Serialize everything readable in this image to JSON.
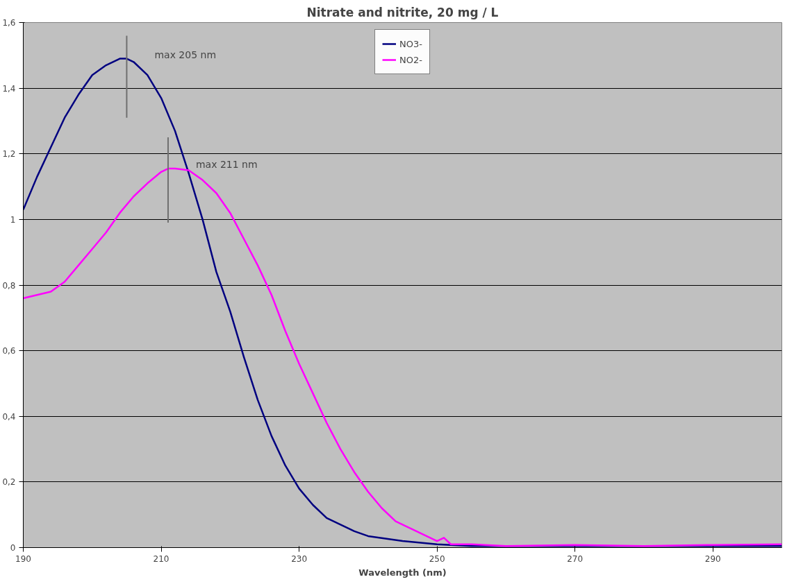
{
  "chart_data": {
    "type": "line",
    "title": "Nitrate and nitrite, 20 mg / L",
    "xlabel": "Wavelength (nm)",
    "xlim": [
      190,
      300
    ],
    "xticks": [
      190,
      210,
      230,
      250,
      270,
      290
    ],
    "ylim": [
      0,
      1.6
    ],
    "yticks": [
      0,
      {
        "value": 0.2,
        "label": "0,2"
      },
      {
        "value": 0.4,
        "label": "0,4"
      },
      {
        "value": 0.6,
        "label": "0,6"
      },
      {
        "value": 0.8,
        "label": "0,8"
      },
      1,
      {
        "value": 1.2,
        "label": "1,2"
      },
      {
        "value": 1.4,
        "label": "1,4"
      },
      {
        "value": 1.6,
        "label": "1,6"
      }
    ],
    "grid": "y",
    "legend": "top",
    "series": [
      {
        "name": "NO3-",
        "color": "#000080",
        "x": [
          190,
          192,
          194,
          196,
          198,
          200,
          202,
          204,
          205,
          206,
          208,
          210,
          212,
          214,
          216,
          218,
          220,
          222,
          224,
          226,
          228,
          230,
          232,
          234,
          236,
          238,
          240,
          245,
          250,
          255,
          260,
          270,
          280,
          290,
          300
        ],
        "values": [
          1.03,
          1.13,
          1.22,
          1.31,
          1.38,
          1.44,
          1.47,
          1.49,
          1.49,
          1.48,
          1.44,
          1.37,
          1.27,
          1.14,
          1.0,
          0.84,
          0.72,
          0.58,
          0.45,
          0.34,
          0.25,
          0.18,
          0.13,
          0.09,
          0.07,
          0.05,
          0.035,
          0.02,
          0.01,
          0.005,
          0.005,
          0.005,
          0.005,
          0.005,
          0.005
        ]
      },
      {
        "name": "NO2-",
        "color": "#ff00ff",
        "x": [
          190,
          192,
          194,
          196,
          198,
          200,
          202,
          204,
          206,
          208,
          210,
          211,
          212,
          214,
          216,
          218,
          220,
          222,
          224,
          226,
          228,
          230,
          232,
          234,
          236,
          238,
          240,
          242,
          244,
          246,
          248,
          250,
          251,
          252,
          255,
          260,
          270,
          280,
          290,
          300
        ],
        "values": [
          0.76,
          0.77,
          0.78,
          0.81,
          0.86,
          0.91,
          0.96,
          1.02,
          1.07,
          1.11,
          1.145,
          1.155,
          1.155,
          1.15,
          1.12,
          1.08,
          1.02,
          0.94,
          0.86,
          0.77,
          0.66,
          0.56,
          0.47,
          0.38,
          0.3,
          0.23,
          0.17,
          0.12,
          0.08,
          0.06,
          0.04,
          0.02,
          0.03,
          0.01,
          0.01,
          0.005,
          0.008,
          0.005,
          0.008,
          0.01
        ]
      },
      {
        "color": "#707070",
        "x": [
          205,
          205
        ],
        "values": [
          1.31,
          1.56
        ]
      },
      {
        "color": "#707070",
        "x": [
          211,
          211
        ],
        "values": [
          0.99,
          1.25
        ]
      }
    ],
    "annotations": [
      {
        "text": "max 205 nm",
        "x": 205,
        "y": 1.49
      },
      {
        "text": "max 211 nm",
        "x": 211,
        "y": 1.155
      }
    ]
  }
}
